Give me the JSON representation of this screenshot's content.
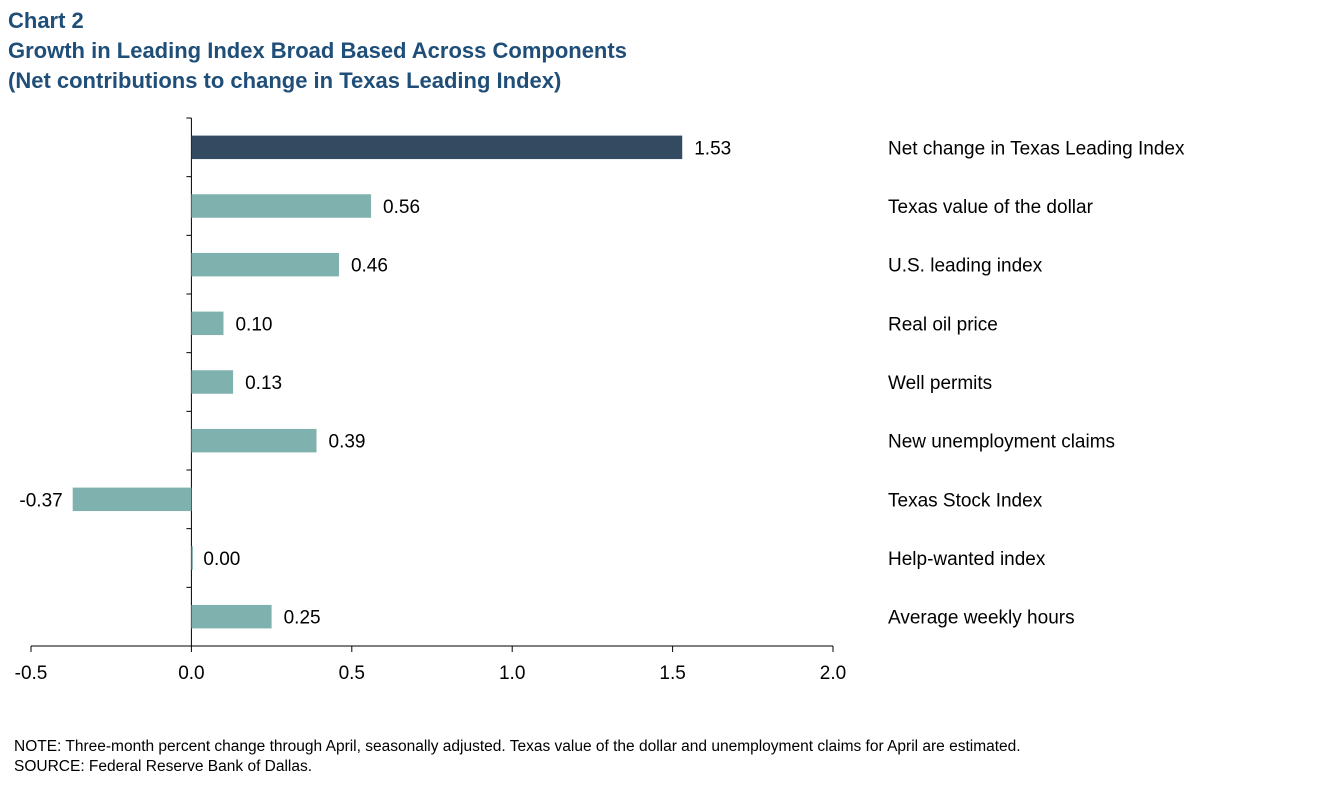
{
  "header": {
    "chart_number": "Chart 2",
    "title": "Growth in Leading Index Broad Based Across Components",
    "subtitle": "(Net contributions to change in Texas Leading Index)"
  },
  "footer": {
    "note": "NOTE: Three-month percent change through April, seasonally adjusted. Texas value of the dollar and unemployment claims for April are estimated.",
    "source": "SOURCE: Federal Reserve Bank of Dallas."
  },
  "colors": {
    "highlight_bar": "#344a61",
    "component_bar": "#7fb1ae",
    "axis": "#000000",
    "title": "#1f4e79"
  },
  "chart_data": {
    "type": "bar",
    "orientation": "horizontal",
    "title": "Growth in Leading Index Broad Based Across Components",
    "subtitle": "(Net contributions to change in Texas Leading Index)",
    "xlabel": "",
    "ylabel": "",
    "xlim": [
      -0.5,
      2.0
    ],
    "x_ticks": [
      -0.5,
      0.0,
      0.5,
      1.0,
      1.5,
      2.0
    ],
    "x_tick_labels": [
      "-0.5",
      "0.0",
      "0.5",
      "1.0",
      "1.5",
      "2.0"
    ],
    "grid": false,
    "legend": "none",
    "categories": [
      "Net change in Texas Leading Index",
      "Texas value of the dollar",
      "U.S. leading index",
      "Real oil price",
      "Well permits",
      "New unemployment claims",
      "Texas Stock Index",
      "Help-wanted index",
      "Average weekly hours"
    ],
    "values": [
      1.53,
      0.56,
      0.46,
      0.1,
      0.13,
      0.39,
      -0.37,
      0.0,
      0.25
    ],
    "value_labels": [
      "1.53",
      "0.56",
      "0.46",
      "0.10",
      "0.13",
      "0.39",
      "-0.37",
      "0.00",
      "0.25"
    ],
    "highlight_index": 0
  }
}
